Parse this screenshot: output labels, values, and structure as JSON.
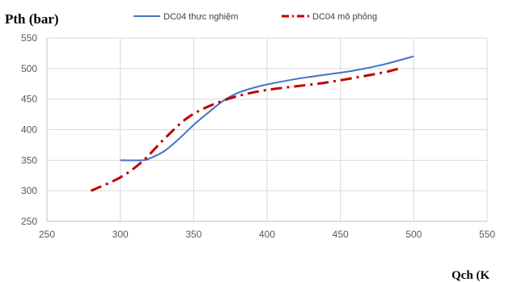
{
  "chart_data": {
    "type": "line",
    "ylabel": "Pth (bar)",
    "xlabel": "Qch (K",
    "xlim": [
      250,
      550
    ],
    "ylim": [
      250,
      550
    ],
    "xticks": [
      250,
      300,
      350,
      400,
      450,
      500,
      550
    ],
    "yticks": [
      250,
      300,
      350,
      400,
      450,
      500,
      550
    ],
    "grid": "vertical and horizontal",
    "legend_position": "top",
    "series": [
      {
        "name": "DC04 thực nghiệm",
        "color": "#4472C4",
        "style": "solid",
        "x": [
          300,
          315,
          320,
          330,
          340,
          350,
          360,
          370,
          380,
          390,
          400,
          420,
          440,
          460,
          480,
          500
        ],
        "y": [
          350,
          350,
          353,
          365,
          385,
          408,
          428,
          447,
          460,
          468,
          474,
          483,
          490,
          497,
          507,
          520
        ]
      },
      {
        "name": "DC04 mô phỏng",
        "color": "#C00000",
        "style": "dash-dot",
        "x": [
          280,
          300,
          315,
          330,
          345,
          360,
          380,
          400,
          420,
          440,
          460,
          480,
          490
        ],
        "y": [
          300,
          322,
          348,
          385,
          418,
          438,
          455,
          465,
          471,
          477,
          485,
          494,
          500
        ]
      }
    ]
  }
}
